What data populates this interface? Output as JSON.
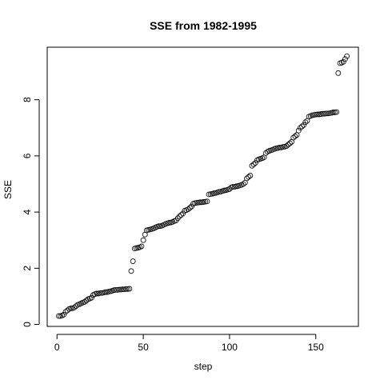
{
  "chart_data": {
    "type": "scatter",
    "title": "SSE from 1982-1995",
    "x_label": "step",
    "y_label": "SSE",
    "x": [
      1,
      2,
      3,
      4,
      5,
      6,
      7,
      8,
      9,
      10,
      11,
      12,
      13,
      14,
      15,
      16,
      17,
      18,
      19,
      20,
      21,
      22,
      23,
      24,
      25,
      26,
      27,
      28,
      29,
      30,
      31,
      32,
      33,
      34,
      35,
      36,
      37,
      38,
      39,
      40,
      41,
      42,
      43,
      44,
      45,
      46,
      47,
      48,
      49,
      50,
      51,
      52,
      53,
      54,
      55,
      56,
      57,
      58,
      59,
      60,
      61,
      62,
      63,
      64,
      65,
      66,
      67,
      68,
      69,
      70,
      71,
      72,
      73,
      74,
      75,
      76,
      77,
      78,
      79,
      80,
      81,
      82,
      83,
      84,
      85,
      86,
      87,
      88,
      89,
      90,
      91,
      92,
      93,
      94,
      95,
      96,
      97,
      98,
      99,
      100,
      101,
      102,
      103,
      104,
      105,
      106,
      107,
      108,
      109,
      110,
      111,
      112,
      113,
      114,
      115,
      116,
      117,
      118,
      119,
      120,
      121,
      122,
      123,
      124,
      125,
      126,
      127,
      128,
      129,
      130,
      131,
      132,
      133,
      134,
      135,
      136,
      137,
      138,
      139,
      140,
      141,
      142,
      143,
      144,
      145,
      146,
      147,
      148,
      149,
      150,
      151,
      152,
      153,
      154,
      155,
      156,
      157,
      158,
      159,
      160,
      161,
      162,
      163,
      164,
      165,
      166,
      167,
      168
    ],
    "values": [
      0.3,
      0.3,
      0.32,
      0.35,
      0.45,
      0.5,
      0.55,
      0.57,
      0.58,
      0.6,
      0.65,
      0.7,
      0.72,
      0.75,
      0.78,
      0.8,
      0.85,
      0.9,
      0.92,
      0.95,
      1.05,
      1.08,
      1.1,
      1.1,
      1.12,
      1.12,
      1.13,
      1.15,
      1.15,
      1.17,
      1.18,
      1.2,
      1.22,
      1.23,
      1.23,
      1.24,
      1.24,
      1.25,
      1.25,
      1.26,
      1.26,
      1.27,
      1.9,
      2.25,
      2.7,
      2.72,
      2.73,
      2.75,
      2.78,
      3.0,
      3.2,
      3.35,
      3.37,
      3.38,
      3.4,
      3.42,
      3.45,
      3.48,
      3.5,
      3.5,
      3.52,
      3.55,
      3.58,
      3.6,
      3.62,
      3.63,
      3.65,
      3.68,
      3.7,
      3.78,
      3.85,
      3.9,
      3.95,
      4.05,
      4.07,
      4.1,
      4.15,
      4.2,
      4.3,
      4.32,
      4.33,
      4.34,
      4.35,
      4.35,
      4.36,
      4.37,
      4.38,
      4.63,
      4.64,
      4.65,
      4.67,
      4.68,
      4.7,
      4.72,
      4.73,
      4.75,
      4.77,
      4.78,
      4.8,
      4.82,
      4.88,
      4.9,
      4.9,
      4.92,
      4.93,
      4.95,
      4.97,
      5.0,
      5.05,
      5.2,
      5.25,
      5.3,
      5.65,
      5.7,
      5.75,
      5.85,
      5.88,
      5.9,
      5.92,
      5.95,
      6.1,
      6.15,
      6.18,
      6.2,
      6.22,
      6.25,
      6.27,
      6.28,
      6.3,
      6.3,
      6.32,
      6.33,
      6.35,
      6.4,
      6.45,
      6.5,
      6.65,
      6.7,
      6.75,
      6.9,
      7.0,
      7.05,
      7.1,
      7.2,
      7.25,
      7.4,
      7.42,
      7.45,
      7.46,
      7.47,
      7.48,
      7.48,
      7.49,
      7.5,
      7.5,
      7.51,
      7.51,
      7.52,
      7.53,
      7.55,
      7.55,
      7.56,
      8.95,
      9.3,
      9.32,
      9.35,
      9.45,
      9.55
    ],
    "color": "#000000",
    "xlim": [
      -5.68,
      174.68
    ],
    "xticks": [
      0,
      50,
      100,
      150
    ],
    "ylim": [
      -0.07,
      9.87
    ],
    "yticks": [
      0,
      2,
      4,
      6,
      8
    ]
  }
}
